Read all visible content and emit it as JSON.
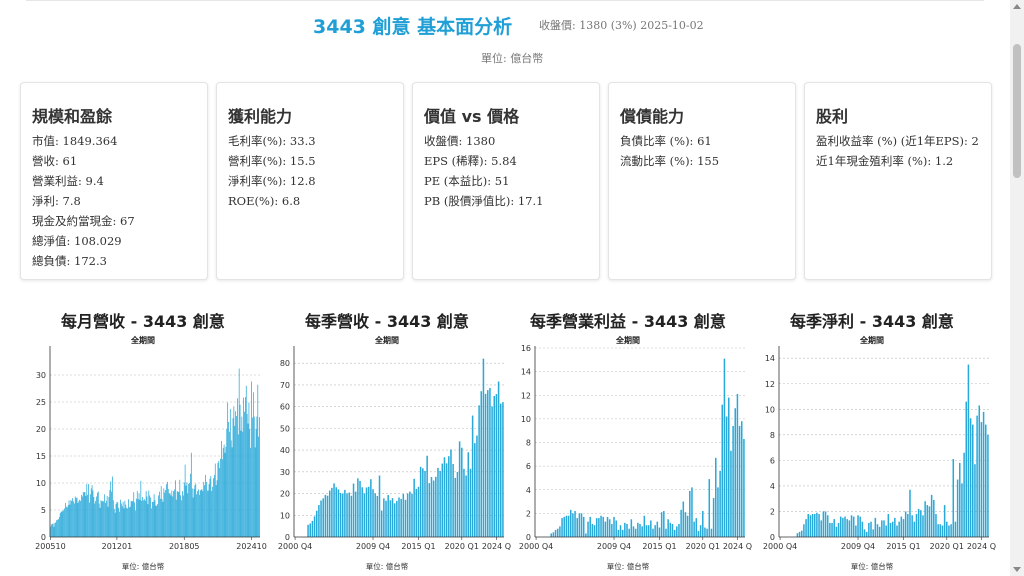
{
  "header": {
    "title": "3443 創意 基本面分析",
    "close_info": "收盤價: 1380 (3%) 2025-10-02",
    "unit": "單位: 億台幣"
  },
  "cards": [
    {
      "title": "規模和盈餘",
      "items": [
        "市值: 1849.364",
        "營收: 61",
        "營業利益: 9.4",
        "淨利: 7.8",
        "現金及約當現金: 67",
        "總淨值: 108.029",
        "總負債: 172.3"
      ]
    },
    {
      "title": "獲利能力",
      "items": [
        "毛利率(%): 33.3",
        "營利率(%): 15.5",
        "淨利率(%): 12.8",
        "ROE(%): 6.8"
      ]
    },
    {
      "title": "價值 vs 價格",
      "items": [
        "收盤價: 1380",
        "EPS (稀釋): 5.84",
        "PE (本益比): 51",
        "PB (股價淨值比): 17.1"
      ]
    },
    {
      "title": "償債能力",
      "items": [
        "負債比率 (%): 61",
        "流動比率 (%): 155"
      ]
    },
    {
      "title": "股利",
      "items": [
        "盈利收益率 (%) (近1年EPS): 2",
        "近1年現金殖利率 (%): 1.2"
      ]
    }
  ],
  "colors": {
    "accent": "#1f9fd6",
    "bar": "#29a9d9"
  },
  "chart_data": [
    {
      "type": "bar",
      "title": "每月營收 - 3443 創意",
      "subtitle": "全期間",
      "unit": "單位: 億台幣",
      "ylim": [
        0,
        35
      ],
      "yticks": [
        0,
        5,
        10,
        15,
        20,
        25,
        30
      ],
      "xtick_labels": [
        "200510",
        "201201",
        "201805",
        "202410"
      ],
      "xtick_index": [
        0,
        75,
        151,
        227
      ],
      "values": [
        1.9,
        2.3,
        2.4,
        2.5,
        1.9,
        2.6,
        2.7,
        3.1,
        3.2,
        3.3,
        3.7,
        4.4,
        4.7,
        4.7,
        4.9,
        4.9,
        5.3,
        6.3,
        5.6,
        5.5,
        5.9,
        6.8,
        6.0,
        6.8,
        6.7,
        7.2,
        6.6,
        6.2,
        7.5,
        7.2,
        7.3,
        6.3,
        6.6,
        6.9,
        6.7,
        7.8,
        7.5,
        8.3,
        8.3,
        8.3,
        7.6,
        9.8,
        7.8,
        9.8,
        6.4,
        7.9,
        9.0,
        9.6,
        8.6,
        7.4,
        6.2,
        6.7,
        7.5,
        8.2,
        8.4,
        6.2,
        5.4,
        6.8,
        6.6,
        6.7,
        6.6,
        7.9,
        6.3,
        6.7,
        7.6,
        5.6,
        7.4,
        8.7,
        10.3,
        8.4,
        11.2,
        6.8,
        5.2,
        4.5,
        6.1,
        6.5,
        6.4,
        5.4,
        4.7,
        6.9,
        6.2,
        5.7,
        6.5,
        5.3,
        6.7,
        6.0,
        5.4,
        5.3,
        7.0,
        5.5,
        5.6,
        6.6,
        6.7,
        6.6,
        8.3,
        6.4,
        4.9,
        7.1,
        8.5,
        7.0,
        8.1,
        6.9,
        10.4,
        6.7,
        7.4,
        6.8,
        7.0,
        6.7,
        8.5,
        7.5,
        6.1,
        8.6,
        7.7,
        7.3,
        5.3,
        6.5,
        6.5,
        7.9,
        6.8,
        5.8,
        5.8,
        6.1,
        7.7,
        8.4,
        7.1,
        9.4,
        7.0,
        6.5,
        9.0,
        8.2,
        8.7,
        9.8,
        10.2,
        8.9,
        8.1,
        8.1,
        7.7,
        8.6,
        7.5,
        8.5,
        8.8,
        10.5,
        6.9,
        8.5,
        8.4,
        8.3,
        10.6,
        7.7,
        6.8,
        8.5,
        7.7,
        10.1,
        13.4,
        9.5,
        10.1,
        8.1,
        9.8,
        10.0,
        11.7,
        15.6,
        9.0,
        7.3,
        8.9,
        9.6,
        9.9,
        7.9,
        8.5,
        8.8,
        7.8,
        8.6,
        8.7,
        8.9,
        8.5,
        10.2,
        9.6,
        11.5,
        10.2,
        8.6,
        8.6,
        9.8,
        10.8,
        11.3,
        8.5,
        9.3,
        10.9,
        11.5,
        13.6,
        9.6,
        10.5,
        13.7,
        14.1,
        12.8,
        14.5,
        17.8,
        14.4,
        16.5,
        17.1,
        15.6,
        16.7,
        20.0,
        24.9,
        21.3,
        19.5,
        23.7,
        17.9,
        16.6,
        22.0,
        24.2,
        20.6,
        23.3,
        22.4,
        25.7,
        19.0,
        31.2,
        24.5,
        19.7,
        22.3,
        19.5,
        25.8,
        23.2,
        25.9,
        28.0,
        22.8,
        21.0,
        24.9,
        20.0,
        16.5,
        28.8,
        22.1,
        26.8,
        22.3,
        16.6,
        20.0,
        22.3,
        28.2,
        18.6,
        22.2
      ]
    },
    {
      "type": "bar",
      "title": "每季營收 - 3443 創意",
      "subtitle": "全期間",
      "unit": "單位: 億台幣",
      "ylim": [
        0,
        87
      ],
      "yticks": [
        0,
        10,
        20,
        30,
        40,
        50,
        60,
        70,
        80
      ],
      "xtick_labels": [
        "2000 Q4",
        "2009 Q4",
        "2015 Q1",
        "2020 Q1",
        "2024 Q"
      ],
      "xtick_index": [
        0,
        36,
        57,
        77,
        93
      ],
      "values": [
        0,
        0,
        0,
        0,
        0,
        0,
        5.6,
        6.2,
        7.4,
        9.5,
        12.1,
        14.7,
        16.8,
        17.8,
        19.4,
        19.0,
        21.4,
        22.6,
        24.7,
        22.9,
        21.9,
        20.3,
        19.9,
        21.7,
        20.0,
        20.5,
        19.0,
        24.6,
        20.9,
        27.0,
        25.8,
        22.9,
        20.1,
        22.8,
        23.1,
        26.6,
        22.0,
        20.1,
        18.9,
        28.3,
        12.2,
        17.8,
        16.7,
        19.3,
        16.9,
        17.9,
        15.5,
        16.6,
        18.2,
        17.5,
        19.8,
        17.1,
        20.0,
        20.9,
        19.9,
        26.8,
        22.1,
        23.1,
        32.3,
        31.6,
        30.4,
        37.4,
        24.8,
        27.6,
        26.0,
        27.7,
        31.8,
        30.4,
        33.8,
        36.7,
        33.9,
        37.2,
        40.3,
        33.6,
        27.2,
        29.9,
        44.0,
        41.1,
        31.4,
        28.3,
        39.0,
        31.4,
        55.9,
        43.2,
        46.7,
        60.6,
        67.1,
        82.1,
        65.9,
        67.6,
        68.6,
        60.1,
        64.9,
        65.8,
        71.6,
        61.4,
        62.1
      ]
    },
    {
      "type": "bar",
      "title": "每季營業利益 - 3443 創意",
      "subtitle": "全期間",
      "unit": "單位: 億台幣",
      "ylim": [
        0,
        16
      ],
      "yticks": [
        0,
        2,
        4,
        6,
        8,
        10,
        12,
        14,
        16
      ],
      "xtick_labels": [
        "2000 Q4",
        "2009 Q4",
        "2015 Q1",
        "2020 Q1",
        "2024 Q"
      ],
      "xtick_index": [
        0,
        36,
        57,
        77,
        93
      ],
      "values": [
        0,
        0,
        0,
        0,
        0,
        0,
        0,
        0.3,
        0.4,
        0.6,
        0.7,
        0.9,
        1.6,
        1.7,
        1.8,
        1.8,
        2.3,
        2.0,
        2.2,
        1.6,
        2.0,
        2.0,
        1.7,
        0.3,
        1.3,
        1.7,
        1.1,
        1.0,
        1.6,
        1.6,
        1.8,
        1.7,
        1.3,
        1.7,
        1.5,
        1.1,
        1.7,
        1.4,
        0.6,
        1.0,
        0.6,
        1.2,
        1.1,
        0.7,
        1.5,
        0.9,
        0.7,
        1.2,
        1.1,
        0.9,
        1.8,
        1.0,
        1.0,
        1.4,
        0.7,
        1.0,
        1.3,
        0.8,
        2.1,
        2.2,
        0.7,
        1.5,
        1.2,
        1.1,
        0.6,
        0.9,
        1.1,
        2.3,
        3.0,
        2.1,
        1.8,
        3.9,
        4.2,
        1.3,
        1.6,
        0.5,
        1.0,
        2.2,
        0.8,
        0.7,
        4.9,
        0.7,
        3.3,
        6.7,
        4.2,
        5.6,
        11.2,
        15.1,
        10.2,
        11.8,
        7.3,
        9.4,
        10.9,
        12.1,
        9.4,
        9.8,
        8.3
      ]
    },
    {
      "type": "bar",
      "title": "每季淨利 - 3443 創意",
      "subtitle": "全期間",
      "unit": "單位: 億台幣",
      "ylim": [
        0,
        14.8
      ],
      "yticks": [
        0,
        2,
        4,
        6,
        8,
        10,
        12,
        14
      ],
      "xtick_labels": [
        "2000 Q4",
        "2009 Q4",
        "2015 Q1",
        "2020 Q1",
        "2024 Q"
      ],
      "xtick_index": [
        0,
        36,
        57,
        77,
        93
      ],
      "values": [
        0,
        0,
        0,
        0,
        0,
        0,
        0,
        0,
        0.3,
        0.4,
        0.5,
        1.0,
        1.4,
        1.8,
        1.7,
        1.8,
        1.8,
        1.9,
        1.8,
        1.3,
        2.0,
        2.0,
        1.7,
        1.1,
        1.1,
        1.4,
        0.8,
        1.1,
        1.6,
        1.5,
        1.6,
        1.4,
        1.3,
        1.7,
        1.6,
        0.9,
        1.7,
        1.6,
        1.2,
        0.6,
        0.4,
        1.1,
        1.2,
        0.6,
        1.5,
        1.0,
        0.8,
        1.3,
        1.3,
        0.9,
        1.8,
        1.1,
        1.2,
        1.5,
        0.9,
        1.2,
        1.6,
        1.4,
        2.0,
        1.8,
        3.7,
        1.7,
        1.2,
        1.8,
        2.2,
        2.1,
        1.7,
        2.8,
        2.5,
        2.4,
        3.3,
        2.9,
        1.8,
        1.0,
        1.0,
        0.9,
        2.5,
        1.2,
        0.9,
        1.0,
        6.1,
        1.2,
        4.5,
        5.8,
        4.2,
        6.6,
        10.6,
        13.5,
        9.3,
        8.8,
        5.7,
        9.5,
        10.3,
        9.0,
        9.8,
        8.8,
        8.0
      ]
    }
  ]
}
